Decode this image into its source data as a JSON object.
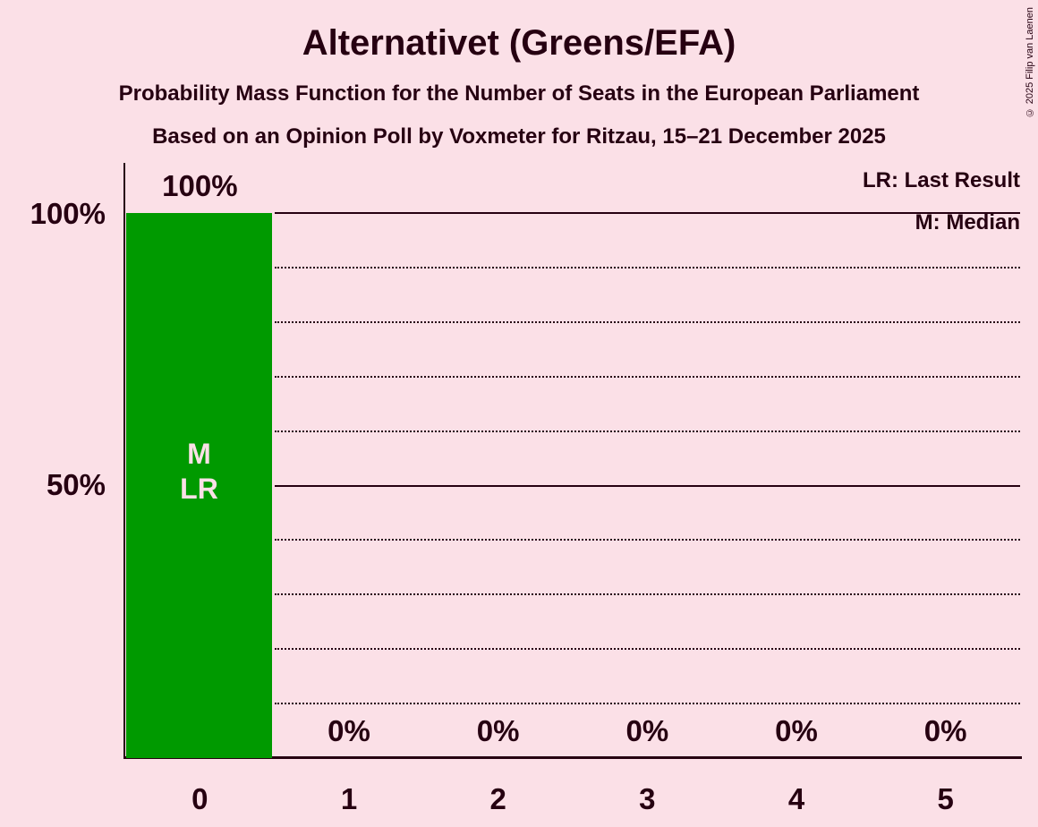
{
  "title": "Alternativet (Greens/EFA)",
  "subtitle1": "Probability Mass Function for the Number of Seats in the European Parliament",
  "subtitle2": "Based on an Opinion Poll by Voxmeter for Ritzau, 15–21 December 2025",
  "copyright": "© 2025 Filip van Laenen",
  "legend": {
    "lr": "LR: Last Result",
    "m": "M: Median"
  },
  "colors": {
    "background": "#fbe0e7",
    "bar": "#009a00",
    "text": "#260011"
  },
  "annotations": {
    "median": "M",
    "last_result": "LR",
    "annotated_bar": "0"
  },
  "chart_data": {
    "type": "bar",
    "title": "Alternativet (Greens/EFA)",
    "categories": [
      "0",
      "1",
      "2",
      "3",
      "4",
      "5"
    ],
    "values": [
      100,
      0,
      0,
      0,
      0,
      0
    ],
    "value_labels": [
      "100%",
      "0%",
      "0%",
      "0%",
      "0%",
      "0%"
    ],
    "yticks": [
      "100%",
      "50%"
    ],
    "ylim": [
      0,
      100
    ],
    "gridlines_solid_pct": [
      100,
      50
    ],
    "gridlines_dotted_pct": [
      90,
      80,
      70,
      60,
      40,
      30,
      20,
      10
    ],
    "legend_position": "top-right",
    "median_seats": 0,
    "last_result_seats": 0
  }
}
